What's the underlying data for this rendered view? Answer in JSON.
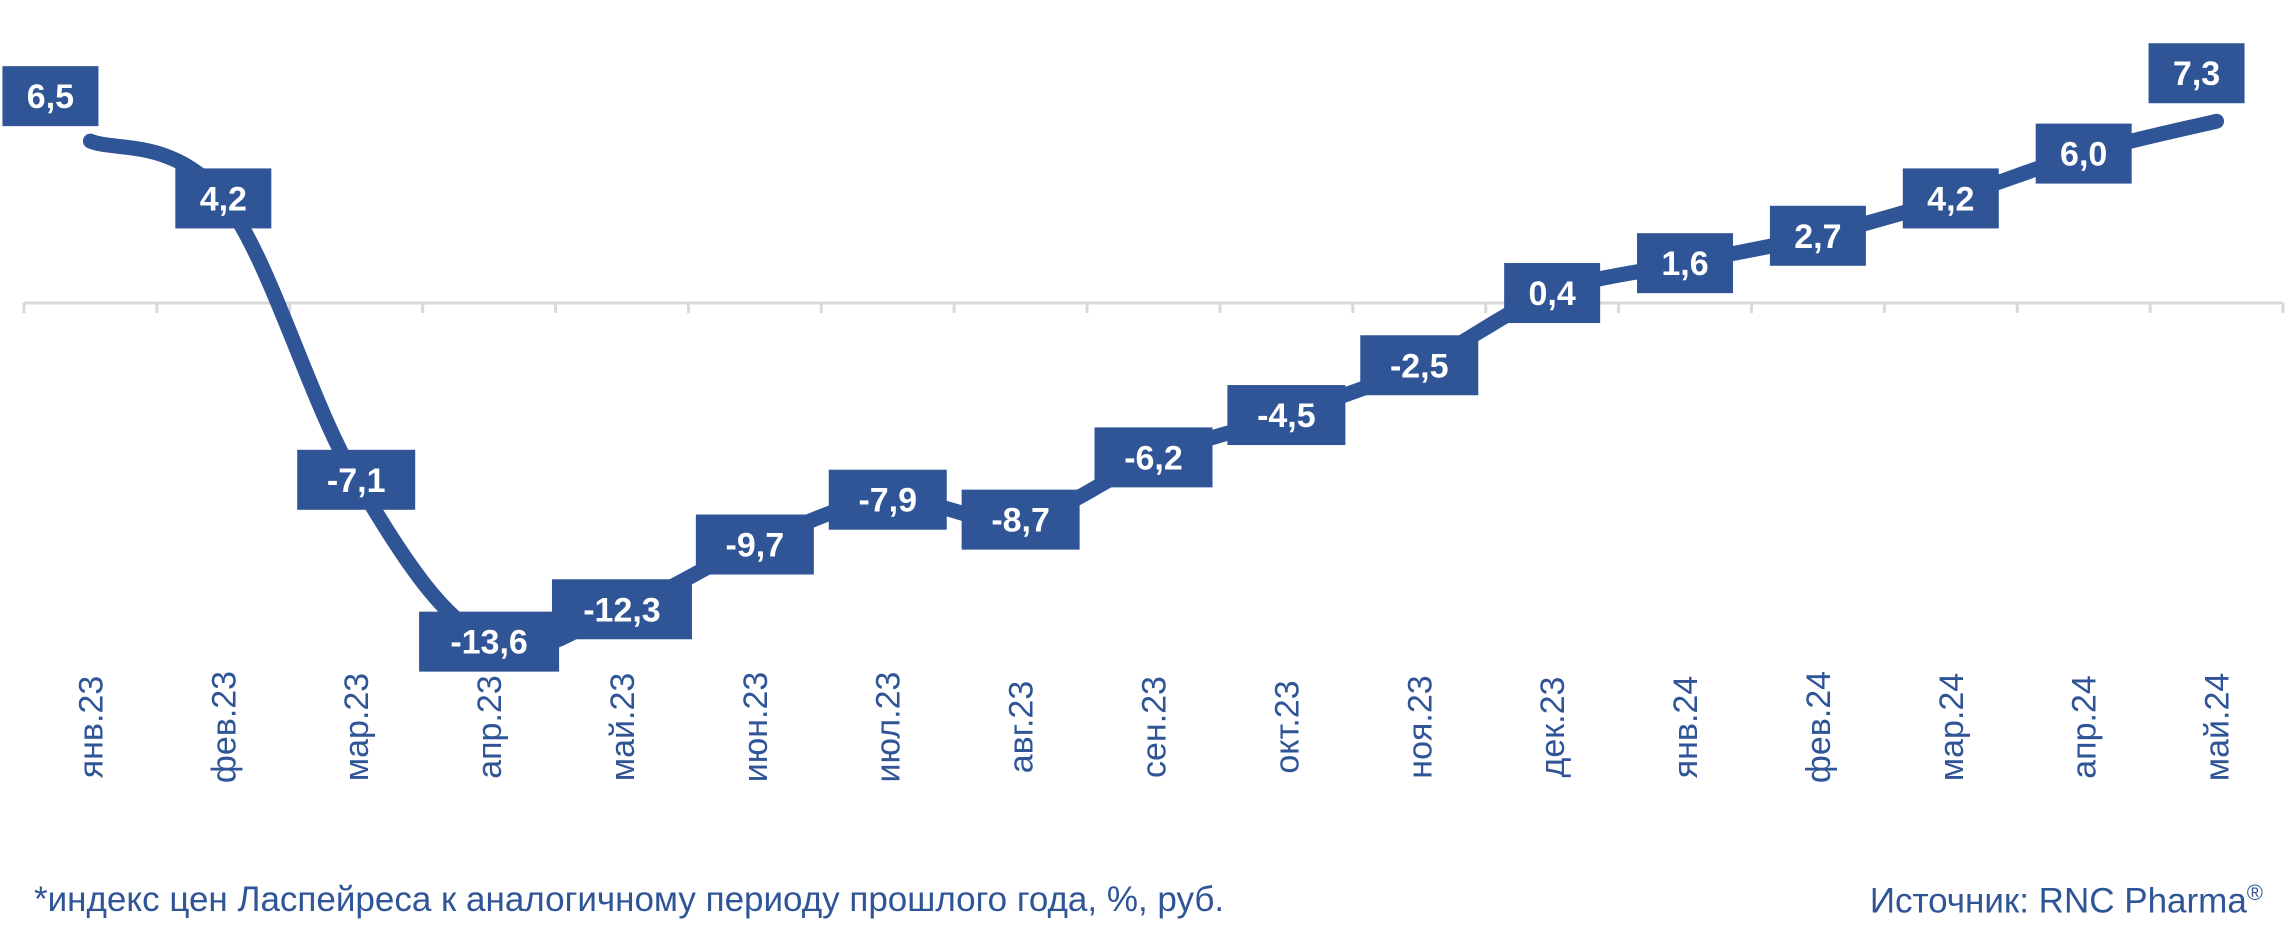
{
  "chart_data": {
    "type": "line",
    "categories": [
      "янв.23",
      "фев.23",
      "мар.23",
      "апр.23",
      "май.23",
      "июн.23",
      "июл.23",
      "авг.23",
      "сен.23",
      "окт.23",
      "ноя.23",
      "дек.23",
      "янв.24",
      "фев.24",
      "мар.24",
      "апр.24",
      "май.24"
    ],
    "series": [
      {
        "values": [
          6.5,
          4.2,
          -7.1,
          -13.6,
          -12.3,
          -9.7,
          -7.9,
          -8.7,
          -6.2,
          -4.5,
          -2.5,
          0.4,
          1.6,
          2.7,
          4.2,
          6.0,
          7.3
        ]
      }
    ],
    "data_labels": [
      "6,5",
      "4,2",
      "-7,1",
      "-13,6",
      "-12,3",
      "-9,7",
      "-7,9",
      "-8,7",
      "-6,2",
      "-4,5",
      "-2,5",
      "0,4",
      "1,6",
      "2,7",
      "4,2",
      "6,0",
      "7,3"
    ],
    "ylim": [
      -15,
      8
    ],
    "grid": false,
    "legend": "none",
    "colors": {
      "line": "#2F5597",
      "label_bg": "#2F5597",
      "label_text": "#ffffff",
      "axis": "#D9D9D9",
      "tick_text": "#2F5597"
    }
  },
  "footnote": "*индекс цен Ласпейреса к аналогичному периоду прошлого года, %, руб.",
  "source": {
    "label": "Источник: RNC Pharma",
    "mark": "®"
  }
}
